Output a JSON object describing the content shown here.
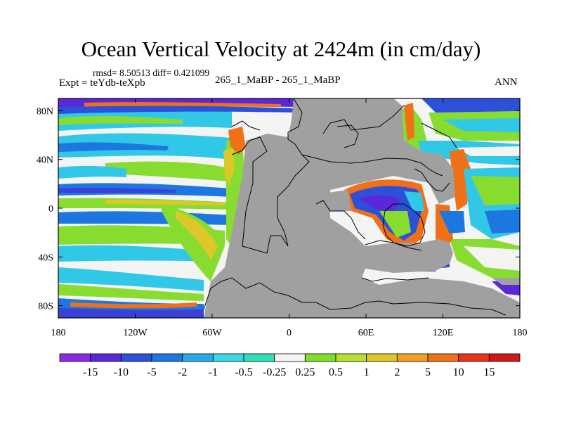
{
  "title": "Ocean Vertical Velocity at 2424m (in cm/day)",
  "stats_text": "rmsd= 8.50513 diff= 0.421099",
  "expt_text": "Expt = teYdb-teXpb",
  "subtitle": "265_1_MaBP - 265_1_MaBP",
  "season": "ANN",
  "chart_data": {
    "type": "heatmap",
    "title": "Ocean Vertical Velocity at 2424m (in cm/day)",
    "xlabel": "",
    "ylabel": "",
    "x_range": [
      -180,
      180
    ],
    "y_range": [
      -90,
      90
    ],
    "x_ticks": [
      {
        "value": -180,
        "label": "180"
      },
      {
        "value": -120,
        "label": "120W"
      },
      {
        "value": -60,
        "label": "60W"
      },
      {
        "value": 0,
        "label": "0"
      },
      {
        "value": 60,
        "label": "60E"
      },
      {
        "value": 120,
        "label": "120E"
      },
      {
        "value": 180,
        "label": "180"
      }
    ],
    "y_ticks": [
      {
        "value": 80,
        "label": "80N"
      },
      {
        "value": 40,
        "label": "40N"
      },
      {
        "value": 0,
        "label": "0"
      },
      {
        "value": -40,
        "label": "40S"
      },
      {
        "value": -80,
        "label": "80S"
      }
    ],
    "land_color": "#a0a0a0",
    "colorbar": {
      "levels": [
        "-15",
        "-10",
        "-5",
        "-2",
        "-1",
        "-0.5",
        "-0.25",
        "0.25",
        "0.5",
        "1",
        "2",
        "5",
        "10",
        "15"
      ],
      "colors": [
        "#8a2be2",
        "#5a28d8",
        "#2c50d8",
        "#1c78e0",
        "#2aa8ec",
        "#38d8e6",
        "#2ee0b8",
        "#f4f4f4",
        "#7ee028",
        "#b8e030",
        "#dcc828",
        "#f0a020",
        "#f07018",
        "#e83418",
        "#d01818"
      ]
    }
  }
}
